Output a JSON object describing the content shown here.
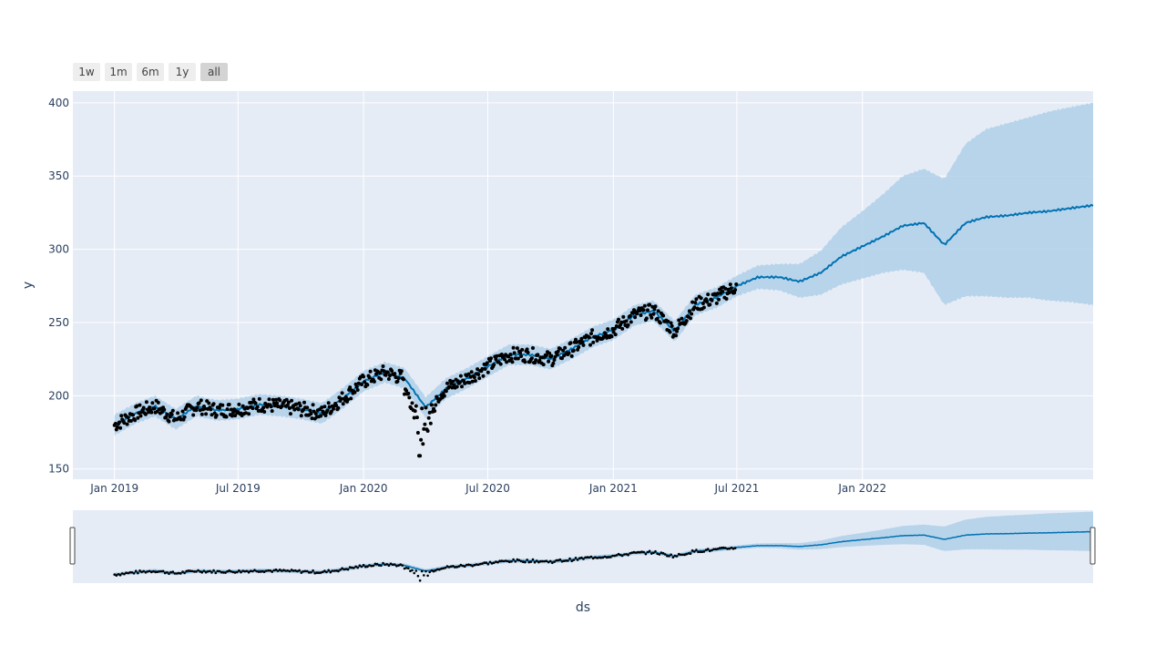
{
  "range_selector": {
    "buttons": [
      {
        "label": "1w",
        "active": false
      },
      {
        "label": "1m",
        "active": false
      },
      {
        "label": "6m",
        "active": false
      },
      {
        "label": "1y",
        "active": false
      },
      {
        "label": "all",
        "active": true
      }
    ]
  },
  "colors": {
    "plot_background": "#e5ecf6",
    "forecast_line": "#0072b2",
    "uncertainty_band": "#b0d0e9",
    "observed_points": "#000000",
    "grid": "#ffffff",
    "axis_text": "#2a3f5f"
  },
  "chart_data": {
    "type": "line",
    "title": "",
    "xlabel": "ds",
    "ylabel": "y",
    "x_range": [
      "2018-11-01",
      "2022-12-05"
    ],
    "ylim": [
      143,
      408
    ],
    "x_ticks": [
      {
        "date": "2019-01-01",
        "label": "Jan 2019"
      },
      {
        "date": "2019-07-01",
        "label": "Jul 2019"
      },
      {
        "date": "2020-01-01",
        "label": "Jan 2020"
      },
      {
        "date": "2020-07-01",
        "label": "Jul 2020"
      },
      {
        "date": "2021-01-01",
        "label": "Jan 2021"
      },
      {
        "date": "2021-07-01",
        "label": "Jul 2021"
      },
      {
        "date": "2022-01-01",
        "label": "Jan 2022"
      }
    ],
    "y_ticks": [
      150,
      200,
      250,
      300,
      350,
      400
    ],
    "grid": true,
    "rangeslider": true,
    "series": [
      {
        "kind": "forecast_yhat",
        "x": [
          "2019-01-01",
          "2019-02-01",
          "2019-03-01",
          "2019-04-01",
          "2019-05-01",
          "2019-06-01",
          "2019-07-01",
          "2019-08-01",
          "2019-09-01",
          "2019-10-01",
          "2019-11-01",
          "2019-12-01",
          "2020-01-01",
          "2020-02-01",
          "2020-03-01",
          "2020-04-01",
          "2020-05-01",
          "2020-06-01",
          "2020-07-01",
          "2020-08-01",
          "2020-09-01",
          "2020-10-01",
          "2020-11-01",
          "2020-12-01",
          "2021-01-01",
          "2021-02-01",
          "2021-03-01",
          "2021-04-01",
          "2021-05-01",
          "2021-06-01",
          "2021-07-01",
          "2021-08-01",
          "2021-09-01",
          "2021-10-01",
          "2021-11-01",
          "2021-12-01",
          "2022-01-01",
          "2022-02-01",
          "2022-03-01",
          "2022-04-01",
          "2022-05-01",
          "2022-06-01",
          "2022-07-01",
          "2022-08-01",
          "2022-09-01",
          "2022-10-01",
          "2022-11-01",
          "2022-12-05"
        ],
        "y": [
          180,
          188,
          193,
          184,
          193,
          190,
          191,
          194,
          193,
          191,
          188,
          198,
          210,
          216,
          212,
          192,
          205,
          212,
          220,
          228,
          228,
          225,
          232,
          240,
          245,
          255,
          258,
          244,
          262,
          267,
          275,
          281,
          281,
          278,
          284,
          295,
          302,
          309,
          316,
          318,
          303,
          318,
          322,
          323,
          325,
          326,
          328,
          330
        ],
        "lower": [
          173,
          181,
          186,
          177,
          186,
          183,
          184,
          187,
          186,
          184,
          181,
          191,
          203,
          209,
          205,
          185,
          198,
          205,
          213,
          221,
          221,
          218,
          225,
          233,
          238,
          248,
          251,
          237,
          255,
          260,
          268,
          273,
          272,
          267,
          269,
          276,
          280,
          284,
          286,
          284,
          262,
          268,
          268,
          267,
          267,
          265,
          264,
          262
        ],
        "upper": [
          187,
          195,
          200,
          191,
          200,
          197,
          198,
          201,
          200,
          198,
          195,
          205,
          217,
          223,
          219,
          199,
          212,
          219,
          227,
          235,
          235,
          232,
          239,
          247,
          252,
          262,
          265,
          251,
          269,
          274,
          282,
          289,
          290,
          290,
          299,
          315,
          326,
          338,
          350,
          355,
          348,
          372,
          382,
          386,
          390,
          394,
          397,
          400
        ]
      }
    ],
    "observed_points": {
      "count": 640,
      "date_range": [
        "2019-01-01",
        "2021-06-30"
      ],
      "notable_low": {
        "date": "2020-03-23",
        "y": 159
      }
    }
  }
}
